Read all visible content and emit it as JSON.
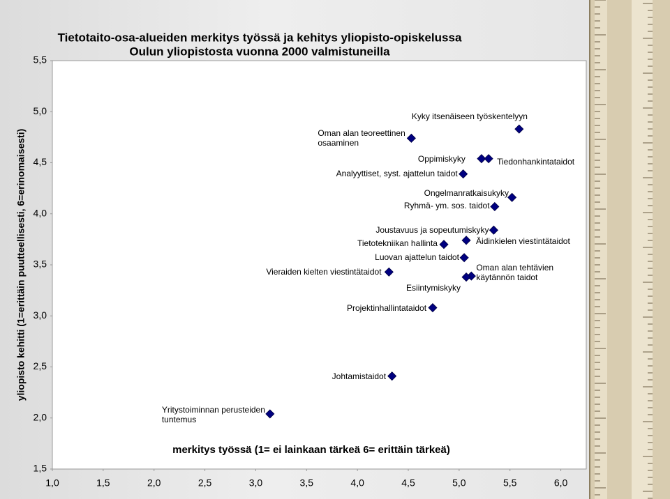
{
  "chart_data": {
    "type": "scatter",
    "title": "Tietotaito-osa-alueiden merkitys työssä ja kehitys yliopisto-opiskelussa",
    "subtitle": "Oulun yliopistosta vuonna 2000 valmistuneilla",
    "x_label": "merkitys työssä (1= ei lainkaan tärkeä 6= erittäin tärkeä)",
    "y_label": "yliopisto kehitti (1=erittäin puutteellisesti, 6=erinomaisesti)",
    "color": "#000080",
    "point_labels": [
      "Kyky itsenäiseen työskentelyyn",
      "Oman alan teoreettinen osaaminen",
      "Oppimiskyky",
      "Tiedonhankintataidot",
      "Analyyttiset, syst. ajattelun taidot",
      "Ongelmanratkaisukyky",
      "Ryhmä- ym. sos. taidot",
      "Joustavuus ja sopeutumiskyky",
      "Tietotekniikan hallinta",
      "Äidinkielen viestintätaidot",
      "Luovan ajattelun taidot",
      "Vieraiden kielten viestintätaidot",
      "Oman alan tehtävien käytännön taidot",
      "Esiintymiskyky",
      "Projektinhallintataidot",
      "Johtamistaidot",
      "Yritystoiminnan perusteiden tuntemus"
    ],
    "x": [
      5.59,
      4.53,
      5.22,
      5.29,
      5.04,
      5.52,
      5.35,
      5.34,
      4.85,
      5.07,
      5.05,
      4.31,
      5.12,
      5.07,
      4.74,
      4.34,
      3.14
    ],
    "values": [
      4.83,
      4.74,
      4.54,
      4.54,
      4.39,
      4.16,
      4.07,
      3.84,
      3.7,
      3.74,
      3.57,
      3.43,
      3.39,
      3.38,
      3.08,
      2.41,
      2.04
    ],
    "xlim": [
      1.0,
      6.25
    ],
    "ylim": [
      1.5,
      5.5
    ],
    "xticks": [
      {
        "value": 1.0,
        "label": "1,0"
      },
      {
        "value": 1.5,
        "label": "1,5"
      },
      {
        "value": 2.0,
        "label": "2,0"
      },
      {
        "value": 2.5,
        "label": "2,5"
      },
      {
        "value": 3.0,
        "label": "3,0"
      },
      {
        "value": 3.5,
        "label": "3,5"
      },
      {
        "value": 4.0,
        "label": "4,0"
      },
      {
        "value": 4.5,
        "label": "4,5"
      },
      {
        "value": 5.0,
        "label": "5,0"
      },
      {
        "value": 5.5,
        "label": "5,5"
      },
      {
        "value": 6.0,
        "label": "6,0"
      }
    ],
    "yticks": [
      {
        "value": 1.5,
        "label": "1,5"
      },
      {
        "value": 2.0,
        "label": "2,0"
      },
      {
        "value": 2.5,
        "label": "2,5"
      },
      {
        "value": 3.0,
        "label": "3,0"
      },
      {
        "value": 3.5,
        "label": "3,5"
      },
      {
        "value": 4.0,
        "label": "4,0"
      },
      {
        "value": 4.5,
        "label": "4,5"
      },
      {
        "value": 5.0,
        "label": "5,0"
      },
      {
        "value": 5.5,
        "label": "5,5"
      }
    ]
  }
}
